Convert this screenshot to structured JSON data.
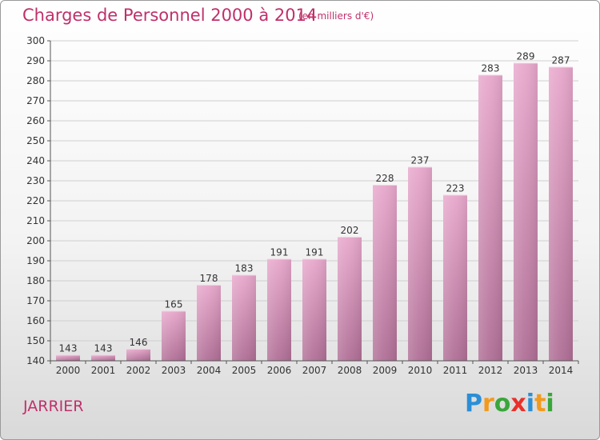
{
  "header": {
    "title": "Charges de Personnel 2000 à 2014",
    "subtitle": "(en milliers d'€)"
  },
  "footer": {
    "commune": "JARRIER",
    "logo": {
      "letters": [
        "P",
        "r",
        "o",
        "x",
        "i",
        "t",
        "i"
      ],
      "colors": [
        "#2b8fd6",
        "#f29a1e",
        "#3aa63a",
        "#e8312a",
        "#2b8fd6",
        "#f29a1e",
        "#3aa63a"
      ]
    }
  },
  "chart_data": {
    "type": "bar",
    "title": "Charges de Personnel 2000 à 2014",
    "subtitle": "(en milliers d'€)",
    "categories": [
      "2000",
      "2001",
      "2002",
      "2003",
      "2004",
      "2005",
      "2006",
      "2007",
      "2008",
      "2009",
      "2010",
      "2011",
      "2012",
      "2013",
      "2014"
    ],
    "values": [
      143,
      143,
      146,
      165,
      178,
      183,
      191,
      191,
      202,
      228,
      237,
      223,
      283,
      289,
      287
    ],
    "ylim": [
      140,
      300
    ],
    "yticks": [
      140,
      150,
      160,
      170,
      180,
      190,
      200,
      210,
      220,
      230,
      240,
      250,
      260,
      270,
      280,
      290,
      300
    ],
    "grid": true,
    "bar_color_top": "#e8a8cc",
    "bar_color_bottom": "#b06f96"
  }
}
